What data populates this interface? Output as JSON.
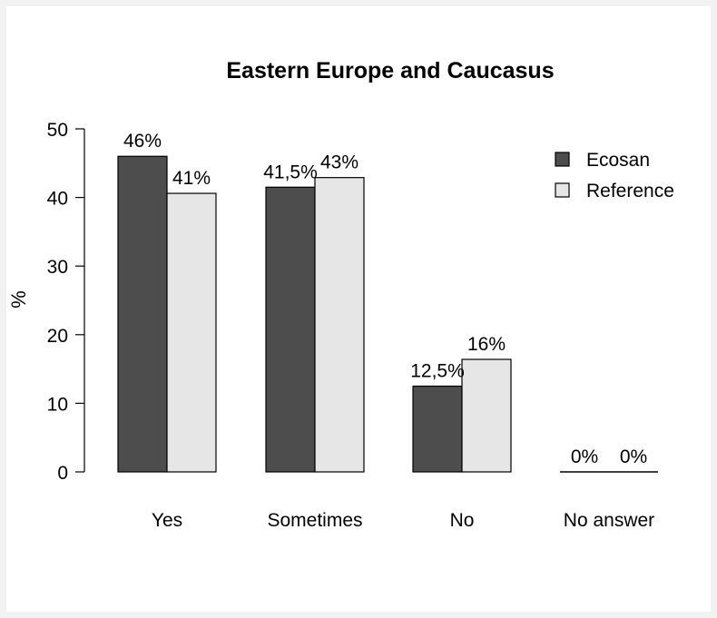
{
  "chart_data": {
    "type": "bar",
    "title": "Eastern Europe and Caucasus",
    "ylabel": "%",
    "xlabel": "",
    "ylim": [
      0,
      50
    ],
    "yticks": [
      0,
      10,
      20,
      30,
      40,
      50
    ],
    "grid": false,
    "legend_position": "top-right",
    "categories": [
      "Yes",
      "Sometimes",
      "No",
      "No answer"
    ],
    "series": [
      {
        "name": "Ecosan",
        "color": "#4d4d4d",
        "values": [
          46,
          41.5,
          12.5,
          0
        ],
        "labels": [
          "46%",
          "41,5%",
          "12,5%",
          "0%"
        ]
      },
      {
        "name": "Reference",
        "color": "#e6e6e6",
        "values": [
          40.6,
          42.9,
          16.4,
          0
        ],
        "labels": [
          "41%",
          "43%",
          "16%",
          "0%"
        ]
      }
    ]
  }
}
